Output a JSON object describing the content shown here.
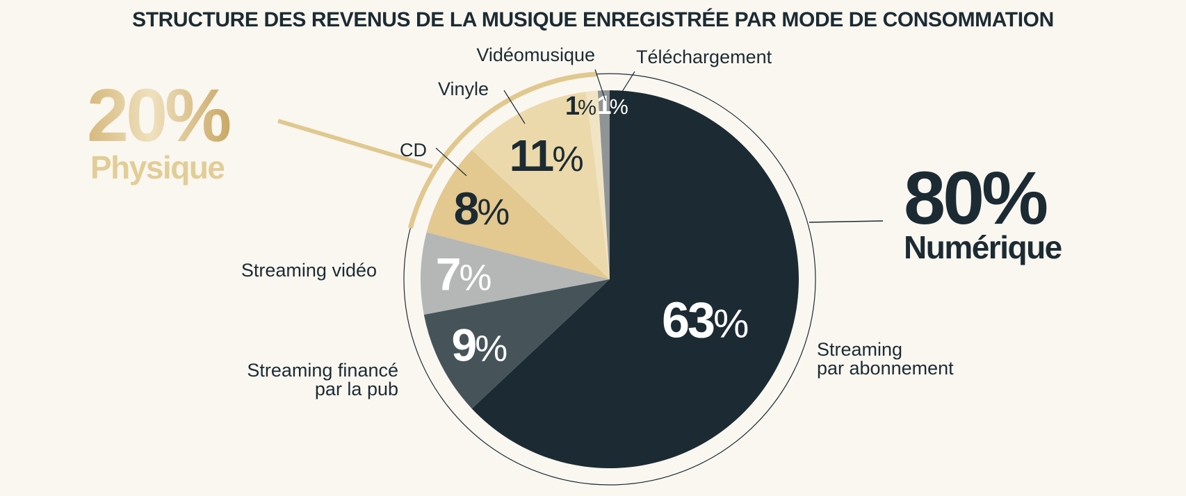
{
  "chart_data": {
    "type": "pie",
    "title": "STRUCTURE DES REVENUS DE LA MUSIQUE ENREGISTRÉE PAR MODE DE CONSOMMATION",
    "slices": [
      {
        "label": "Streaming\npar abonnement",
        "value": 63,
        "display": "63%",
        "color": "#1c2b33",
        "text_color": "#ffffff",
        "group": "Numérique"
      },
      {
        "label": "Streaming financé\npar la pub",
        "value": 9,
        "display": "9%",
        "color": "#46545a",
        "text_color": "#ffffff",
        "group": "Numérique"
      },
      {
        "label": "Streaming vidéo",
        "value": 7,
        "display": "7%",
        "color": "#b5b7b6",
        "text_color": "#ffffff",
        "group": "Numérique"
      },
      {
        "label": "CD",
        "value": 8,
        "display": "8%",
        "color": "#e3c88f",
        "text_color": "#1c2b33",
        "group": "Physique"
      },
      {
        "label": "Vinyle",
        "value": 11,
        "display": "11%",
        "color": "#ecd9ab",
        "text_color": "#1c2b33",
        "group": "Physique"
      },
      {
        "label": "Vidéomusique",
        "value": 1,
        "display": "1%",
        "color": "#f1e4c4",
        "text_color": "#1c2b33",
        "group": "Physique"
      },
      {
        "label": "Téléchargement",
        "value": 1,
        "display": "1%",
        "color": "#8f9496",
        "text_color": "#ffffff",
        "group": "Numérique"
      }
    ],
    "groups": [
      {
        "name": "Numérique",
        "total": "80%",
        "color": "#1c2b33"
      },
      {
        "name": "Physique",
        "total": "20%",
        "color": "#d9bd83"
      }
    ]
  }
}
